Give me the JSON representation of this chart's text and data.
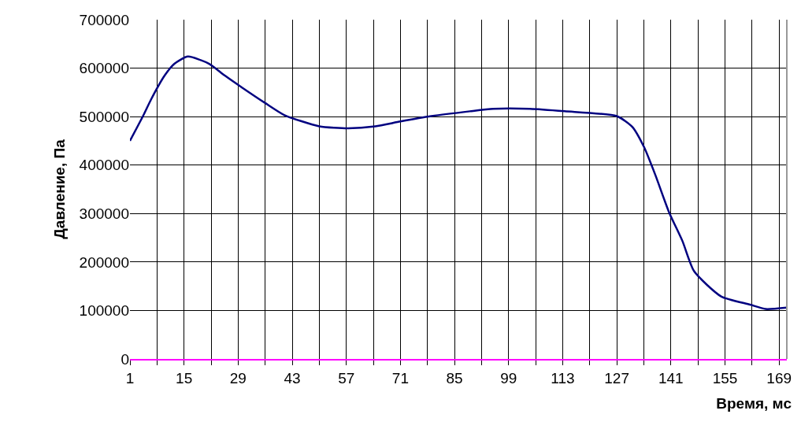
{
  "chart_data": {
    "type": "line",
    "xlabel": "Время, мс",
    "ylabel": "Давление, Па",
    "x": [
      1,
      4.5,
      6.5,
      10,
      12.5,
      16,
      21.5,
      25.5,
      30,
      36,
      41,
      50,
      57.5,
      64.5,
      71,
      79,
      89,
      95,
      104.5,
      113.5,
      127,
      131,
      134,
      137,
      140.5,
      144,
      147,
      154,
      161.5,
      165.5,
      171
    ],
    "series": [
      {
        "color": "#000080",
        "values": [
          450000,
          503000,
          536000,
          585000,
          609000,
          624000,
          609000,
          585000,
          560000,
          528000,
          503000,
          480000,
          476000,
          480000,
          490000,
          501000,
          511000,
          516000,
          516000,
          511000,
          501000,
          479000,
          438000,
          379000,
          303000,
          243000,
          181000,
          129000,
          112000,
          103000,
          106000
        ]
      }
    ],
    "xlim": [
      1,
      171
    ],
    "xticks": [
      1,
      {
        "value": 8,
        "label": null
      },
      15,
      {
        "value": 22,
        "label": null
      },
      29,
      {
        "value": 36,
        "label": null
      },
      43,
      {
        "value": 50,
        "label": null
      },
      57,
      {
        "value": 64,
        "label": null
      },
      71,
      {
        "value": 78,
        "label": null
      },
      85,
      {
        "value": 92,
        "label": null
      },
      99,
      {
        "value": 106,
        "label": null
      },
      113,
      {
        "value": 120,
        "label": null
      },
      127,
      {
        "value": 134,
        "label": null
      },
      141,
      {
        "value": 148,
        "label": null
      },
      155,
      {
        "value": 162,
        "label": null
      },
      169
    ],
    "ylim": [
      0,
      700000
    ],
    "yticks": [
      0,
      100000,
      200000,
      300000,
      400000,
      500000,
      600000,
      700000
    ],
    "grid": true,
    "marker": "none",
    "line_style": "solid"
  }
}
